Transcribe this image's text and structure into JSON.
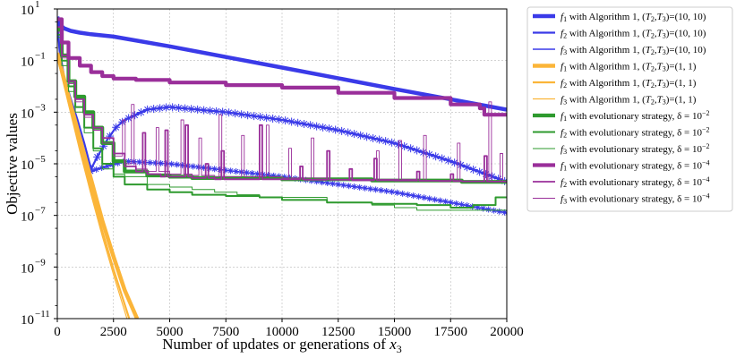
{
  "chart_data": {
    "type": "line",
    "xlabel": "Number of updates or generations of x3",
    "ylabel": "Objective values",
    "x_ticks": [
      "0",
      "2500",
      "5000",
      "7500",
      "10000",
      "12500",
      "15000",
      "17500",
      "20000"
    ],
    "y_ticks": [
      {
        "base": "10",
        "exp": "1"
      },
      {
        "base": "10",
        "exp": "−1"
      },
      {
        "base": "10",
        "exp": "−3"
      },
      {
        "base": "10",
        "exp": "−5"
      },
      {
        "base": "10",
        "exp": "−7"
      },
      {
        "base": "10",
        "exp": "−9"
      },
      {
        "base": "10",
        "exp": "−11"
      }
    ],
    "xlim": [
      0,
      20000
    ],
    "ylim_log10": [
      -11,
      1
    ],
    "y_scale": "log",
    "grid": true,
    "legend_position": "outside-right",
    "series": [
      {
        "name": "f1 with Algorithm 1, (T2,T3)=(10,10)",
        "legend": [
          "f",
          "1",
          " with Algorithm 1, (",
          "T",
          "2",
          ",",
          "T",
          "3",
          ")=(10, 10)"
        ],
        "color": "#3a3ae8",
        "width": 4.5,
        "style": "plain",
        "x": [
          0,
          100,
          300,
          600,
          1000,
          1500,
          2500,
          5000,
          10000,
          15000,
          20000
        ],
        "y_log10": [
          0.7,
          0.4,
          0.25,
          0.15,
          0.08,
          0.02,
          -0.07,
          -0.45,
          -1.27,
          -2.1,
          -2.9
        ]
      },
      {
        "name": "f2 with Algorithm 1, (T2,T3)=(10,10)",
        "legend": [
          "f",
          "2",
          " with Algorithm 1, (",
          "T",
          "2",
          ",",
          "T",
          "3",
          ")=(10, 10)"
        ],
        "color": "#3a3ae8",
        "width": 2.2,
        "style": "star",
        "x": [
          0,
          100,
          300,
          600,
          900,
          1200,
          1500,
          1800,
          2200,
          2600,
          3000,
          4000,
          5000,
          7500,
          10000,
          12500,
          15000,
          17500,
          20000
        ],
        "y_log10": [
          0.6,
          -0.6,
          -1.6,
          -2.5,
          -3.3,
          -4.2,
          -5.2,
          -4.7,
          -4.1,
          -3.6,
          -3.3,
          -2.9,
          -2.8,
          -3.0,
          -3.3,
          -3.7,
          -4.2,
          -4.9,
          -5.7
        ]
      },
      {
        "name": "f3 with Algorithm 1, (T2,T3)=(10,10)",
        "legend": [
          "f",
          "3",
          " with Algorithm 1, (",
          "T",
          "2",
          ",",
          "T",
          "3",
          ")=(10, 10)"
        ],
        "color": "#3a3ae8",
        "width": 1.4,
        "style": "star",
        "x": [
          0,
          100,
          300,
          600,
          900,
          1200,
          1500,
          1800,
          2200,
          2600,
          3000,
          5000,
          7500,
          10000,
          12500,
          15000,
          17500,
          20000
        ],
        "y_log10": [
          0.5,
          -0.7,
          -1.8,
          -2.8,
          -3.6,
          -4.5,
          -5.3,
          -5.2,
          -5.1,
          -5.0,
          -4.9,
          -5.0,
          -5.25,
          -5.5,
          -5.8,
          -6.1,
          -6.5,
          -6.9
        ]
      },
      {
        "name": "f1 with Algorithm 1, (T2,T3)=(1,1)",
        "legend": [
          "f",
          "1",
          " with Algorithm 1, (",
          "T",
          "2",
          ",",
          "T",
          "3",
          ")=(1, 1)"
        ],
        "color": "#fbb539",
        "width": 4.5,
        "style": "plain",
        "x": [
          0,
          500,
          1000,
          1500,
          2000,
          2500,
          3000,
          3550
        ],
        "y_log10": [
          -0.7,
          -2.4,
          -4.0,
          -5.6,
          -7.2,
          -8.6,
          -9.9,
          -11
        ]
      },
      {
        "name": "f2 with Algorithm 1, (T2,T3)=(1,1)",
        "legend": [
          "f",
          "2",
          " with Algorithm 1, (",
          "T",
          "2",
          ",",
          "T",
          "3",
          ")=(1, 1)"
        ],
        "color": "#fbb539",
        "width": 2.2,
        "style": "plain",
        "x": [
          0,
          500,
          1000,
          1500,
          2000,
          2500,
          3200
        ],
        "y_log10": [
          -0.8,
          -2.6,
          -4.3,
          -6.0,
          -7.6,
          -9.1,
          -11
        ]
      },
      {
        "name": "f3 with Algorithm 1, (T2,T3)=(1,1)",
        "legend": [
          "f",
          "3",
          " with Algorithm 1, (",
          "T",
          "2",
          ",",
          "T",
          "3",
          ")=(1, 1)"
        ],
        "color": "#fbb539",
        "width": 1.2,
        "style": "plain",
        "x": [
          0,
          500,
          1000,
          1500,
          2000,
          2500,
          3100
        ],
        "y_log10": [
          -0.9,
          -2.7,
          -4.5,
          -6.2,
          -7.8,
          -9.3,
          -11
        ]
      },
      {
        "name": "f1 with evolutionary strategy, δ=10^-2",
        "legend": [
          "f",
          "1",
          " with evolutionary strategy, δ = 10",
          "−2"
        ],
        "color": "#2e9a2e",
        "width": 4.2,
        "style": "step",
        "x": [
          0,
          200,
          500,
          800,
          1200,
          1600,
          2000,
          2500,
          3000,
          4000,
          5000,
          6000,
          8000,
          10000,
          12000,
          14000,
          16000,
          18000,
          20000
        ],
        "y_log10": [
          0.2,
          -0.8,
          -1.8,
          -2.4,
          -3.0,
          -3.6,
          -4.2,
          -4.9,
          -5.3,
          -5.45,
          -5.5,
          -5.55,
          -5.55,
          -5.6,
          -5.6,
          -5.65,
          -5.65,
          -5.7,
          -5.7
        ]
      },
      {
        "name": "f2 with evolutionary strategy, δ=10^-2",
        "legend": [
          "f",
          "2",
          " with evolutionary strategy, δ = 10",
          "−2"
        ],
        "color": "#2e9a2e",
        "width": 2.0,
        "style": "step",
        "x": [
          0,
          200,
          500,
          800,
          1200,
          1600,
          2000,
          2500,
          3000,
          4000,
          5000,
          6000,
          7500,
          9000,
          10000,
          12000,
          14000,
          16000,
          17500,
          18500,
          19500,
          20000
        ],
        "y_log10": [
          0.0,
          -1.0,
          -2.0,
          -2.8,
          -3.6,
          -4.4,
          -5.0,
          -5.5,
          -5.8,
          -6.0,
          -6.1,
          -6.2,
          -6.25,
          -6.3,
          -6.4,
          -6.5,
          -6.55,
          -6.6,
          -6.7,
          -6.6,
          -6.3,
          -6.3
        ]
      },
      {
        "name": "f3 with evolutionary strategy, δ=10^-2",
        "legend": [
          "f",
          "3",
          " with evolutionary strategy, δ = 10",
          "−2"
        ],
        "color": "#2e9a2e",
        "width": 1.0,
        "style": "step",
        "x": [
          0,
          200,
          500,
          800,
          1200,
          1600,
          2000,
          2500,
          3000,
          4000,
          5000,
          6000,
          7000,
          8000,
          9000,
          10000,
          12000,
          14000,
          15000,
          16000,
          18000,
          20000
        ],
        "y_log10": [
          -0.1,
          -1.2,
          -2.2,
          -3.0,
          -3.8,
          -4.5,
          -5.2,
          -5.4,
          -5.5,
          -5.8,
          -5.9,
          -6.0,
          -6.1,
          -6.2,
          -6.3,
          -6.3,
          -6.5,
          -6.6,
          -6.7,
          -6.8,
          -6.8,
          -6.5
        ]
      },
      {
        "name": "f1 with evolutionary strategy, δ=10^-4",
        "legend": [
          "f",
          "1",
          " with evolutionary strategy, δ = 10",
          "−4"
        ],
        "color": "#9a2f9a",
        "width": 4.2,
        "style": "step",
        "x": [
          0,
          200,
          500,
          1000,
          1500,
          2000,
          2500,
          3500,
          5000,
          7500,
          10000,
          12500,
          15000,
          17500,
          18800,
          19000,
          20000
        ],
        "y_log10": [
          0.6,
          -0.3,
          -0.9,
          -1.2,
          -1.45,
          -1.6,
          -1.7,
          -1.75,
          -1.85,
          -1.95,
          -2.05,
          -2.25,
          -2.45,
          -2.7,
          -2.85,
          -3.1,
          -3.15
        ]
      },
      {
        "name": "f2 with evolutionary strategy, δ=10^-4",
        "legend": [
          "f",
          "2",
          " with evolutionary strategy, δ = 10",
          "−4"
        ],
        "color": "#9a2f9a",
        "width": 1.8,
        "style": "spiky",
        "x": [
          0,
          200,
          500,
          800,
          1200,
          1600,
          2000,
          2500,
          3000,
          3500,
          4000,
          4600,
          5000,
          6000,
          7000,
          8000,
          9000,
          10000,
          11000,
          12000,
          13000,
          14000,
          15000,
          16000,
          17000,
          18000,
          19000,
          20000
        ],
        "y_log10": [
          0.3,
          -0.8,
          -1.8,
          -2.5,
          -3.1,
          -3.6,
          -4.0,
          -4.6,
          -5.1,
          -5.3,
          -5.4,
          -5.5,
          -5.5,
          -5.55,
          -5.6,
          -5.6,
          -5.6,
          -5.6,
          -5.62,
          -5.62,
          -5.64,
          -5.64,
          -5.65,
          -5.66,
          -5.67,
          -5.68,
          -5.69,
          -5.7
        ],
        "spikes": [
          [
            3800,
            -3.8
          ],
          [
            4800,
            -3.7
          ],
          [
            5700,
            -3.5
          ],
          [
            6600,
            -5.0
          ],
          [
            7300,
            -4.5
          ],
          [
            9000,
            -3.5
          ],
          [
            10800,
            -5.1
          ],
          [
            12000,
            -4.5
          ],
          [
            13000,
            -5.2
          ],
          [
            14100,
            -4.8
          ],
          [
            16000,
            -5.3
          ],
          [
            17500,
            -5.4
          ],
          [
            19000,
            -4.7
          ]
        ]
      },
      {
        "name": "f3 with evolutionary strategy, δ=10^-4",
        "legend": [
          "f",
          "3",
          " with evolutionary strategy, δ = 10",
          "−4"
        ],
        "color": "#9a2f9a",
        "width": 0.9,
        "style": "spiky",
        "x": [
          0,
          200,
          500,
          800,
          1200,
          1600,
          2000,
          2500,
          3000,
          3500,
          4000,
          5000,
          6000,
          7000,
          8000,
          9000,
          10000,
          11000,
          12000,
          13000,
          14000,
          15000,
          16000,
          17000,
          18000,
          19000,
          20000
        ],
        "y_log10": [
          0.1,
          -0.9,
          -1.9,
          -2.6,
          -3.2,
          -3.7,
          -4.2,
          -4.7,
          -5.0,
          -5.2,
          -5.3,
          -5.4,
          -5.45,
          -5.5,
          -5.5,
          -5.5,
          -5.55,
          -5.55,
          -5.6,
          -5.6,
          -5.6,
          -5.6,
          -5.65,
          -5.65,
          -5.7,
          -5.7,
          -5.7
        ],
        "spikes": [
          [
            2900,
            -3.3
          ],
          [
            3300,
            -2.7
          ],
          [
            4400,
            -3.6
          ],
          [
            5500,
            -3.3
          ],
          [
            6300,
            -4.0
          ],
          [
            7200,
            -3.1
          ],
          [
            8200,
            -3.9
          ],
          [
            9300,
            -3.5
          ],
          [
            10300,
            -4.4
          ],
          [
            11300,
            -4.0
          ],
          [
            14200,
            -4.5
          ],
          [
            15200,
            -4.1
          ],
          [
            16300,
            -3.9
          ],
          [
            17800,
            -4.2
          ],
          [
            19200,
            -2.6
          ],
          [
            19700,
            -4.6
          ]
        ]
      }
    ]
  }
}
